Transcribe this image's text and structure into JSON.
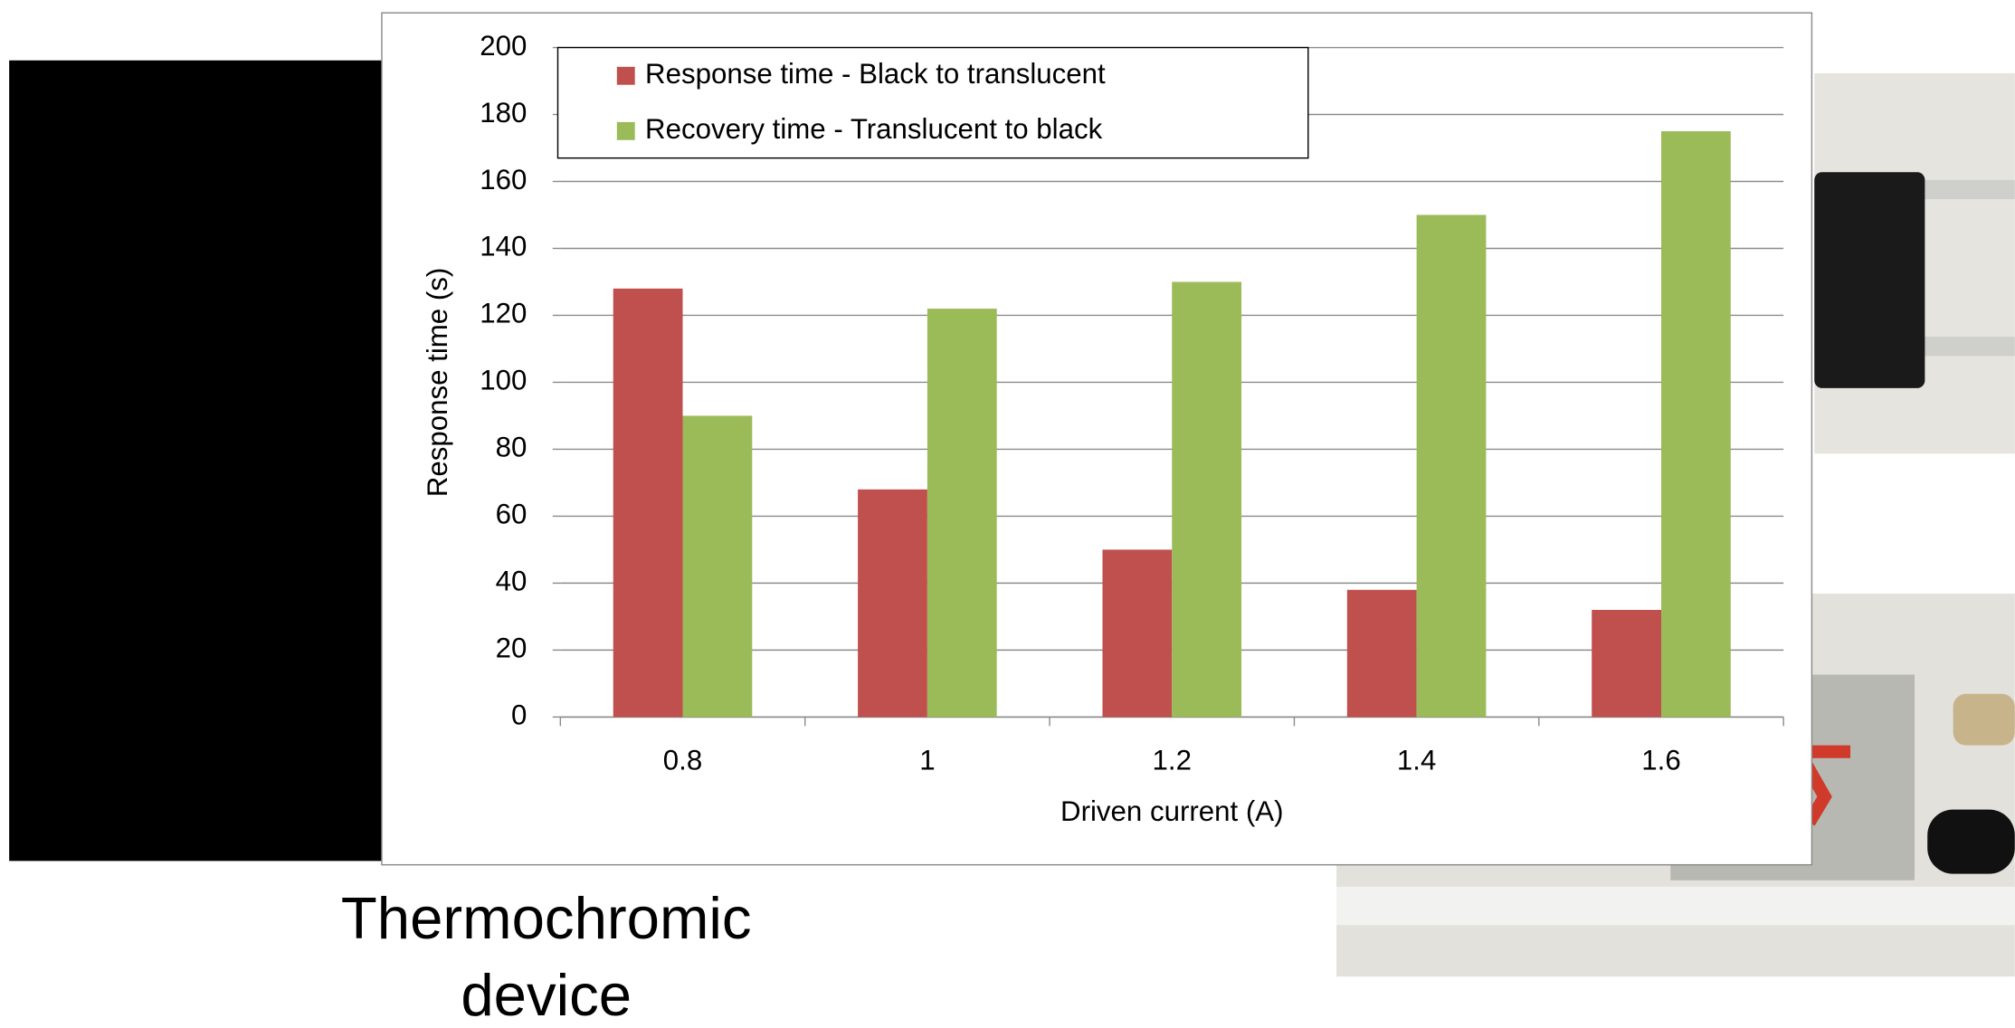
{
  "chart_data": {
    "type": "bar",
    "categories": [
      "0.8",
      "1",
      "1.2",
      "1.4",
      "1.6"
    ],
    "series": [
      {
        "name": "Response time - Black to translucent",
        "color": "#c0504d",
        "values": [
          128,
          68,
          50,
          38,
          32
        ]
      },
      {
        "name": "Recovery time - Translucent to black",
        "color": "#9bbb59",
        "values": [
          90,
          122,
          130,
          150,
          175
        ]
      }
    ],
    "xlabel": "Driven current (A)",
    "ylabel": "Response  time (s)",
    "ylim": [
      0,
      200
    ],
    "yticks": [
      0,
      20,
      40,
      60,
      80,
      100,
      120,
      140,
      160,
      180,
      200
    ],
    "grid": true,
    "legend": "top-left"
  },
  "caption": [
    "Thermochromic",
    "device"
  ]
}
